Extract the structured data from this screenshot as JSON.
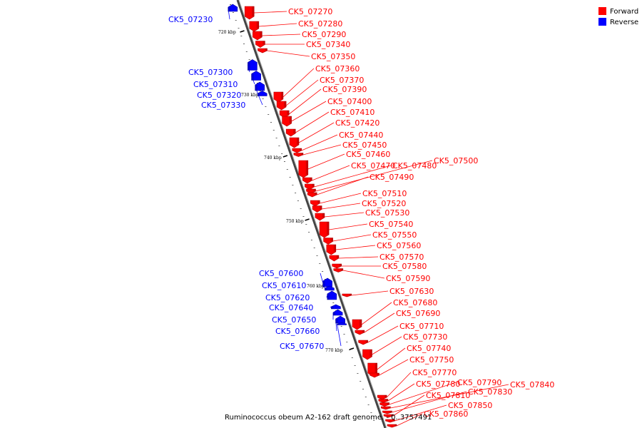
{
  "legend": [
    {
      "label": "Forward",
      "color": "#ff0000"
    },
    {
      "label": "Reverse",
      "color": "#0000ff"
    }
  ],
  "caption": "Ruminococcus obeum A2-162 draft genome. - 0..3757491",
  "ticks": [
    "720 kbp",
    "730 kbp",
    "740 kbp",
    "750 kbp",
    "760 kbp",
    "770 kbp"
  ],
  "genes": [
    {
      "id": "CK5_07230",
      "strand": "reverse"
    },
    {
      "id": "CK5_07270",
      "strand": "forward"
    },
    {
      "id": "CK5_07280",
      "strand": "forward"
    },
    {
      "id": "CK5_07290",
      "strand": "forward"
    },
    {
      "id": "CK5_07340",
      "strand": "forward"
    },
    {
      "id": "CK5_07350",
      "strand": "forward"
    },
    {
      "id": "CK5_07300",
      "strand": "reverse"
    },
    {
      "id": "CK5_07360",
      "strand": "forward"
    },
    {
      "id": "CK5_07310",
      "strand": "reverse"
    },
    {
      "id": "CK5_07370",
      "strand": "forward"
    },
    {
      "id": "CK5_07320",
      "strand": "reverse"
    },
    {
      "id": "CK5_07390",
      "strand": "forward"
    },
    {
      "id": "CK5_07330",
      "strand": "reverse"
    },
    {
      "id": "CK5_07400",
      "strand": "forward"
    },
    {
      "id": "CK5_07410",
      "strand": "forward"
    },
    {
      "id": "CK5_07420",
      "strand": "forward"
    },
    {
      "id": "CK5_07440",
      "strand": "forward"
    },
    {
      "id": "CK5_07450",
      "strand": "forward"
    },
    {
      "id": "CK5_07460",
      "strand": "forward"
    },
    {
      "id": "CK5_07470",
      "strand": "forward"
    },
    {
      "id": "CK5_07480",
      "strand": "forward"
    },
    {
      "id": "CK5_07500",
      "strand": "forward"
    },
    {
      "id": "CK5_07490",
      "strand": "forward"
    },
    {
      "id": "CK5_07510",
      "strand": "forward"
    },
    {
      "id": "CK5_07520",
      "strand": "forward"
    },
    {
      "id": "CK5_07530",
      "strand": "forward"
    },
    {
      "id": "CK5_07540",
      "strand": "forward"
    },
    {
      "id": "CK5_07550",
      "strand": "forward"
    },
    {
      "id": "CK5_07560",
      "strand": "forward"
    },
    {
      "id": "CK5_07570",
      "strand": "forward"
    },
    {
      "id": "CK5_07580",
      "strand": "forward"
    },
    {
      "id": "CK5_07590",
      "strand": "forward"
    },
    {
      "id": "CK5_07600",
      "strand": "reverse"
    },
    {
      "id": "CK5_07610",
      "strand": "reverse"
    },
    {
      "id": "CK5_07630",
      "strand": "forward"
    },
    {
      "id": "CK5_07620",
      "strand": "reverse"
    },
    {
      "id": "CK5_07680",
      "strand": "forward"
    },
    {
      "id": "CK5_07640",
      "strand": "reverse"
    },
    {
      "id": "CK5_07690",
      "strand": "forward"
    },
    {
      "id": "CK5_07650",
      "strand": "reverse"
    },
    {
      "id": "CK5_07710",
      "strand": "forward"
    },
    {
      "id": "CK5_07660",
      "strand": "reverse"
    },
    {
      "id": "CK5_07730",
      "strand": "forward"
    },
    {
      "id": "CK5_07670",
      "strand": "reverse"
    },
    {
      "id": "CK5_07740",
      "strand": "forward"
    },
    {
      "id": "CK5_07750",
      "strand": "forward"
    },
    {
      "id": "CK5_07770",
      "strand": "forward"
    },
    {
      "id": "CK5_07780",
      "strand": "forward"
    },
    {
      "id": "CK5_07790",
      "strand": "forward"
    },
    {
      "id": "CK5_07840",
      "strand": "forward"
    },
    {
      "id": "CK5_07830",
      "strand": "forward"
    },
    {
      "id": "CK5_07810",
      "strand": "forward"
    },
    {
      "id": "CK5_07850",
      "strand": "forward"
    },
    {
      "id": "CK5_07860",
      "strand": "forward"
    }
  ]
}
